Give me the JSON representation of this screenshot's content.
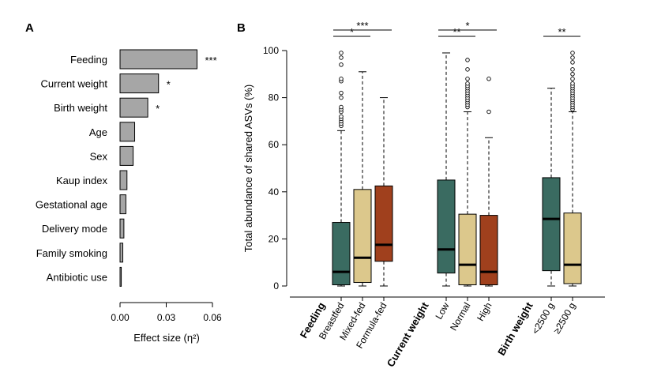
{
  "colors": {
    "bar_fill": "#a6a6a6",
    "breastfed": "#3a6b61",
    "mixed": "#dcc88c",
    "formula": "#a0401d",
    "low": "#3a6b61",
    "normal": "#dcc88c",
    "high": "#a0401d",
    "lt2500": "#3a6b61",
    "ge2500": "#dcc88c"
  },
  "chart_data": [
    {
      "panel": "A",
      "type": "bar",
      "orientation": "horizontal",
      "categories": [
        "Feeding",
        "Current weight",
        "Birth weight",
        "Age",
        "Sex",
        "Kaup index",
        "Gestational age",
        "Delivery mode",
        "Family smoking",
        "Antibiotic use"
      ],
      "values": [
        0.05,
        0.025,
        0.018,
        0.0095,
        0.0085,
        0.0045,
        0.0038,
        0.0025,
        0.0018,
        0.0008
      ],
      "annotations": [
        "***",
        "*",
        "*",
        "",
        "",
        "",
        "",
        "",
        "",
        ""
      ],
      "xlabel": "Effect size (η²)",
      "xticks": [
        0.0,
        0.03,
        0.06
      ],
      "xtick_labels": [
        "0.00",
        "0.03",
        "0.06"
      ],
      "xlim": [
        0,
        0.06
      ]
    },
    {
      "panel": "B",
      "type": "box",
      "ylabel": "Total abundance of shared ASVs (%)",
      "ylim": [
        0,
        100
      ],
      "yticks": [
        0,
        20,
        40,
        60,
        80,
        100
      ],
      "ytick_labels": [
        "0",
        "20",
        "40",
        "60",
        "80",
        "100"
      ],
      "groups": [
        {
          "name": "Feeding",
          "boxes": [
            {
              "label": "Breastfed",
              "color_key": "breastfed",
              "whisker_low": 0,
              "q1": 0.5,
              "median": 6,
              "q3": 27,
              "whisker_high": 66,
              "outliers": [
                68,
                69,
                70,
                71,
                72,
                74,
                75,
                76,
                80,
                82,
                87,
                88,
                94,
                97,
                99
              ]
            },
            {
              "label": "Mixed-fed",
              "color_key": "mixed",
              "whisker_low": 0,
              "q1": 1.5,
              "median": 12,
              "q3": 41,
              "whisker_high": 91,
              "outliers": []
            },
            {
              "label": "Formula-fed",
              "color_key": "formula",
              "whisker_low": 0,
              "q1": 10.5,
              "median": 17.5,
              "q3": 42.5,
              "whisker_high": 80,
              "outliers": []
            }
          ],
          "brackets": [
            {
              "from": 0,
              "to": 1,
              "stars": "*",
              "level": 0
            },
            {
              "from": 0,
              "to": 2,
              "stars": "***",
              "level": 1
            }
          ]
        },
        {
          "name": "Current weight",
          "boxes": [
            {
              "label": "Low",
              "color_key": "low",
              "whisker_low": 0,
              "q1": 5.5,
              "median": 15.5,
              "q3": 45,
              "whisker_high": 99,
              "outliers": []
            },
            {
              "label": "Normal",
              "color_key": "normal",
              "whisker_low": 0,
              "q1": 0.5,
              "median": 9,
              "q3": 30.5,
              "whisker_high": 74,
              "outliers": [
                76,
                77,
                78,
                79,
                80,
                81,
                82,
                83,
                84,
                85,
                86,
                88,
                92,
                96
              ]
            },
            {
              "label": "High",
              "color_key": "high",
              "whisker_low": 0,
              "q1": 0.5,
              "median": 6,
              "q3": 30,
              "whisker_high": 63,
              "outliers": [
                74,
                88
              ]
            }
          ],
          "brackets": [
            {
              "from": 0,
              "to": 1,
              "stars": "**",
              "level": 0
            },
            {
              "from": 0,
              "to": 2,
              "stars": "*",
              "level": 1
            }
          ]
        },
        {
          "name": "Birth weight",
          "boxes": [
            {
              "label": "<2500 g",
              "color_key": "lt2500",
              "whisker_low": 0,
              "q1": 6.5,
              "median": 28.5,
              "q3": 46,
              "whisker_high": 84,
              "outliers": []
            },
            {
              "label": "≥2500 g",
              "color_key": "ge2500",
              "whisker_low": 0,
              "q1": 1,
              "median": 9,
              "q3": 31,
              "whisker_high": 74,
              "outliers": [
                75,
                76,
                77,
                78,
                79,
                80,
                81,
                82,
                83,
                84,
                85,
                86,
                88,
                90,
                92,
                95,
                97,
                99
              ]
            }
          ],
          "brackets": [
            {
              "from": 0,
              "to": 1,
              "stars": "**",
              "level": 0
            }
          ]
        }
      ]
    }
  ]
}
